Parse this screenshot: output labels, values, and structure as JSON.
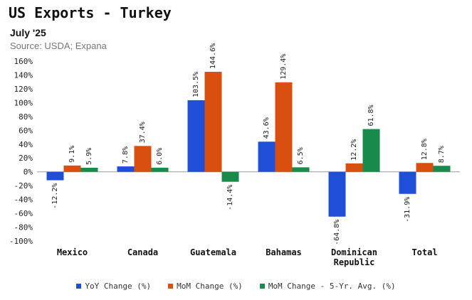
{
  "chart_data": {
    "type": "bar",
    "title": "US Exports - Turkey",
    "subtitle": "July '25",
    "source": "Source: USDA; Expana",
    "categories": [
      {
        "name": "Mexico",
        "lines": [
          "Mexico"
        ]
      },
      {
        "name": "Canada",
        "lines": [
          "Canada"
        ]
      },
      {
        "name": "Guatemala",
        "lines": [
          "Guatemala"
        ]
      },
      {
        "name": "Bahamas",
        "lines": [
          "Bahamas"
        ]
      },
      {
        "name": "Dominican Republic",
        "lines": [
          "Dominican",
          "Republic"
        ]
      },
      {
        "name": "Total",
        "lines": [
          "Total"
        ]
      }
    ],
    "series": [
      {
        "name": "YoY Change (%)",
        "color": "#1f4fd8",
        "values": [
          -12.2,
          7.8,
          103.5,
          43.6,
          -64.8,
          -31.9
        ],
        "labels": [
          "-12.2%",
          "7.8%",
          "103.5%",
          "43.6%",
          "-64.8%",
          "-31.9%"
        ]
      },
      {
        "name": "MoM Change (%)",
        "color": "#d94f0f",
        "values": [
          9.1,
          37.4,
          144.6,
          129.4,
          12.2,
          12.8
        ],
        "labels": [
          "9.1%",
          "37.4%",
          "144.6%",
          "129.4%",
          "12.2%",
          "12.8%"
        ]
      },
      {
        "name": "MoM Change - 5-Yr. Avg. (%)",
        "color": "#188a4c",
        "values": [
          5.9,
          6.0,
          -14.4,
          6.5,
          61.8,
          8.7
        ],
        "labels": [
          "5.9%",
          "6.0%",
          "-14.4%",
          "6.5%",
          "61.8%",
          "8.7%"
        ]
      }
    ],
    "ylim": [
      -100,
      160
    ],
    "yticks": [
      -100,
      -80,
      -60,
      -40,
      -20,
      0,
      20,
      40,
      60,
      80,
      100,
      120,
      140,
      160
    ],
    "ytick_labels": [
      "-100%",
      "-80%",
      "-60%",
      "-40%",
      "-20%",
      "0%",
      "20%",
      "40%",
      "60%",
      "80%",
      "100%",
      "120%",
      "140%",
      "160%"
    ],
    "grid": false,
    "legend_position": "bottom-center"
  }
}
